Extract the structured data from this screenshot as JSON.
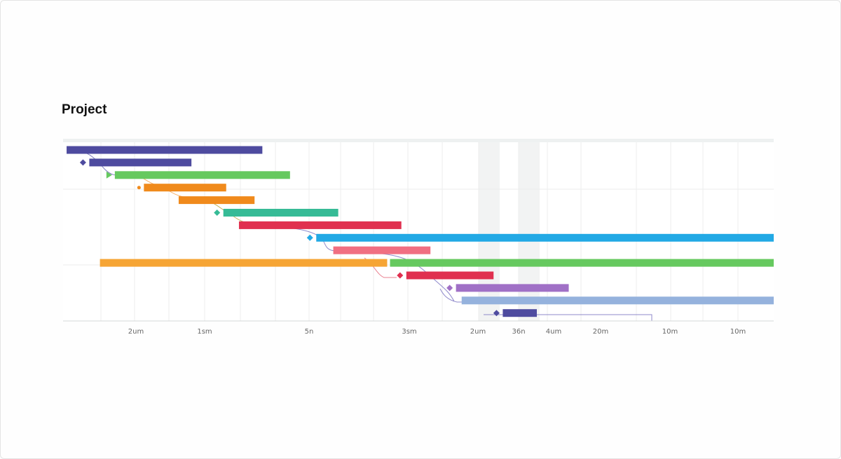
{
  "title": "Project",
  "chart_data": {
    "type": "gantt",
    "title": "Project",
    "tick_labels": [
      "2um",
      "1sm",
      "5n",
      "3sm",
      "2um",
      "36n",
      "4um",
      "20m",
      "10m",
      "10m"
    ],
    "tasks": [
      {
        "start": 0.3,
        "end": 27.9,
        "color": "#4e4b9f",
        "marker": "none"
      },
      {
        "start": 3.5,
        "end": 17.9,
        "color": "#4e4b9f",
        "marker": "diamond"
      },
      {
        "start": 7.1,
        "end": 31.8,
        "color": "#66c95f",
        "marker": "triangle"
      },
      {
        "start": 11.2,
        "end": 22.8,
        "color": "#f08a1c",
        "marker": "dot"
      },
      {
        "start": 16.1,
        "end": 26.8,
        "color": "#f08a1c",
        "marker": "none"
      },
      {
        "start": 22.4,
        "end": 38.6,
        "color": "#36bb96",
        "marker": "diamond"
      },
      {
        "start": 24.6,
        "end": 47.5,
        "color": "#e0304f",
        "marker": "none"
      },
      {
        "start": 35.5,
        "end": 101.5,
        "color": "#22a9e5",
        "marker": "diamond"
      },
      {
        "start": 37.9,
        "end": 51.6,
        "color": "#f06f82",
        "marker": "none"
      },
      {
        "start": 5.0,
        "end": 45.5,
        "color": "#f6a535",
        "marker": "none"
      },
      {
        "start": 45.9,
        "end": 101.5,
        "color": "#66c95f",
        "marker": "none"
      },
      {
        "start": 48.2,
        "end": 60.5,
        "color": "#e0304f",
        "marker": "diamond"
      },
      {
        "start": 55.2,
        "end": 71.1,
        "color": "#a070c6",
        "marker": "diamond"
      },
      {
        "start": 56.0,
        "end": 101.5,
        "color": "#95b2dd",
        "marker": "none"
      },
      {
        "start": 61.8,
        "end": 66.6,
        "color": "#4e4b9f",
        "marker": "diamond"
      }
    ]
  }
}
